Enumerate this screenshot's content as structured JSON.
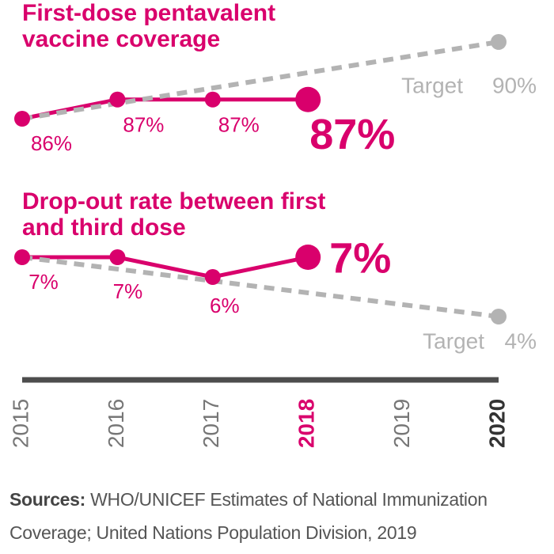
{
  "chart_data": [
    {
      "type": "line",
      "title": "First-dose pentavalent vaccine coverage",
      "x": [
        2015,
        2016,
        2017,
        2018
      ],
      "xlim": [
        2015,
        2020
      ],
      "xticks": [
        2015,
        2016,
        2017,
        2018,
        2019,
        2020
      ],
      "ylim": [
        85,
        91
      ],
      "series": [
        {
          "color": "#d9006c",
          "values": [
            86,
            87,
            87,
            87
          ],
          "value_labels": [
            "86%",
            "87%",
            "87%",
            "87%"
          ]
        },
        {
          "name": "Target",
          "color": "#b3b3b3",
          "x": [
            2015,
            2020
          ],
          "values": [
            86,
            90
          ],
          "value_labels": [
            null,
            "90%"
          ],
          "dashed": true
        }
      ]
    },
    {
      "type": "line",
      "title": "Drop-out rate between first and third dose",
      "x": [
        2015,
        2016,
        2017,
        2018
      ],
      "xlim": [
        2015,
        2020
      ],
      "ylim": [
        3,
        8
      ],
      "series": [
        {
          "color": "#d9006c",
          "values": [
            7,
            7,
            6,
            7
          ],
          "value_labels": [
            "7%",
            "7%",
            "6%",
            "7%"
          ]
        },
        {
          "name": "Target",
          "color": "#b3b3b3",
          "x": [
            2015,
            2020
          ],
          "values": [
            7,
            4
          ],
          "value_labels": [
            null,
            "4%"
          ],
          "dashed": true
        }
      ]
    }
  ],
  "source": {
    "label": "Sources:",
    "text": "WHO/UNICEF Estimates of National Immunization Coverage; United Nations Population Division, 2019"
  }
}
